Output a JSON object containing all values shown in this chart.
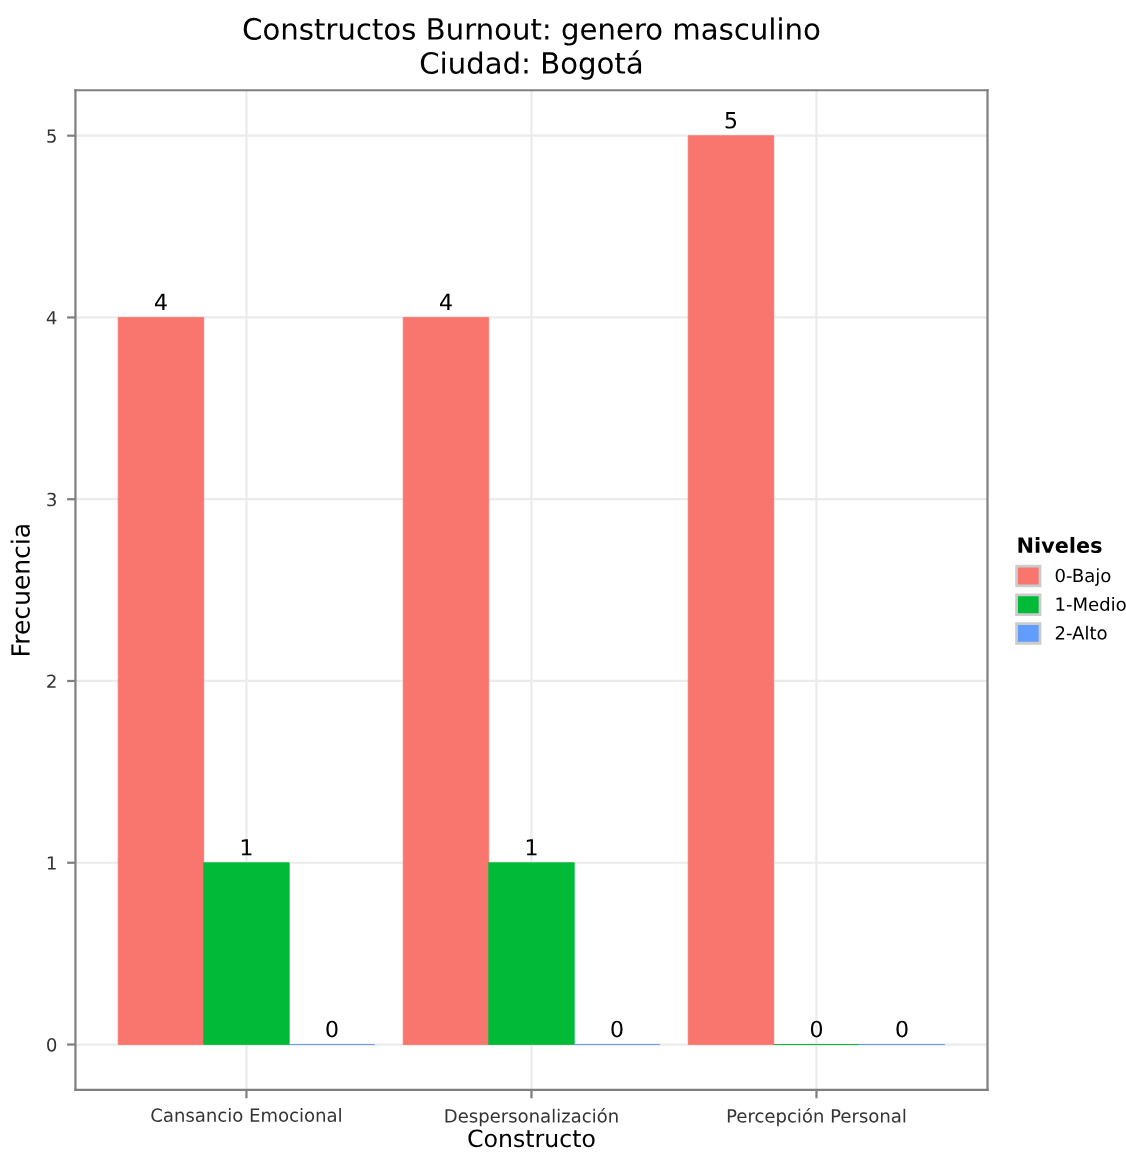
{
  "chart_data": {
    "type": "bar",
    "title": "Constructos Burnout: genero masculino\nCiudad: Bogotá",
    "xlabel": "Constructo",
    "ylabel": "Frecuencia",
    "legend_title": "Niveles",
    "categories": [
      "Cansancio Emocional",
      "Despersonalización",
      "Percepción Personal"
    ],
    "series": [
      {
        "name": "0-Bajo",
        "color": "#f8766d",
        "values": [
          4,
          4,
          5
        ]
      },
      {
        "name": "1-Medio",
        "color": "#00ba38",
        "values": [
          1,
          1,
          0
        ]
      },
      {
        "name": "2-Alto",
        "color": "#619cff",
        "values": [
          0,
          0,
          0
        ]
      }
    ],
    "ylim": [
      -0.25,
      5.25
    ],
    "yticks": [
      0,
      1,
      2,
      3,
      4,
      5
    ],
    "grid": true,
    "legend": "right",
    "data_labels": true
  }
}
